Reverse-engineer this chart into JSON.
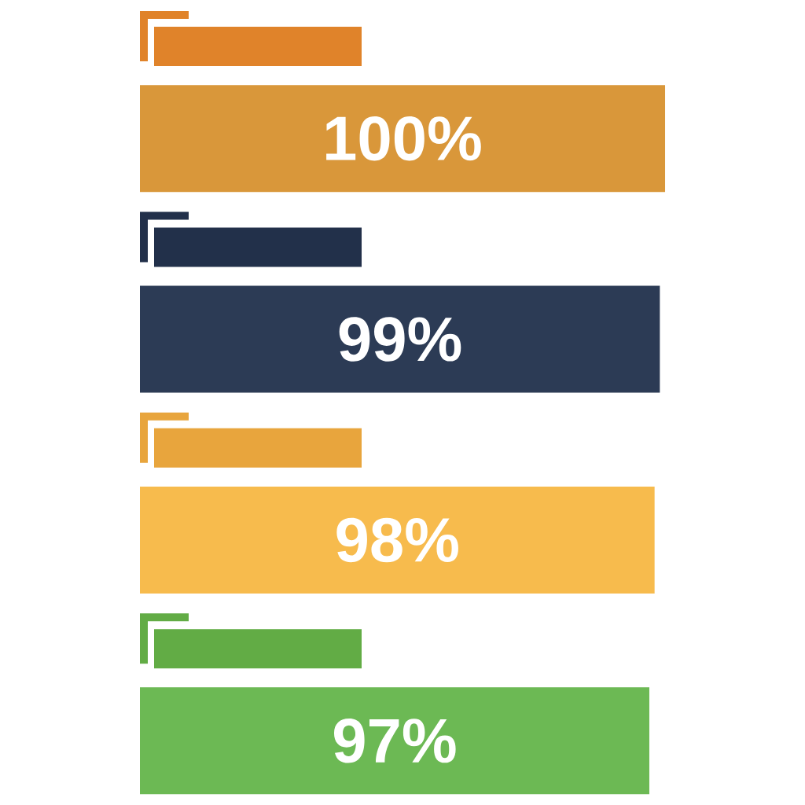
{
  "chart_data": {
    "type": "bar",
    "orientation": "horizontal",
    "categories": [
      null,
      null,
      null,
      null
    ],
    "values": [
      100,
      99,
      98,
      97
    ],
    "colors": [
      "#d9973a",
      "#2c3b55",
      "#f7bb4d",
      "#6cb954"
    ],
    "value_labels": [
      "100%",
      "99%",
      "98%",
      "97%"
    ]
  }
}
